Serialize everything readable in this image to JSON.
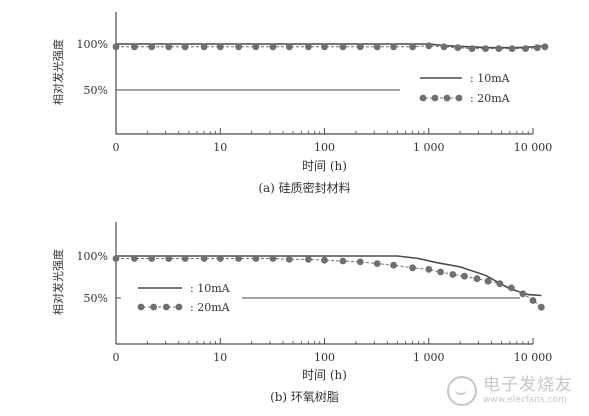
{
  "chart_data": [
    {
      "type": "line",
      "caption": "(a)  硅质密封材料",
      "ylabel": "相对发光强度",
      "xlabel": "时间 (h)",
      "xscale": "log",
      "x_ticks": [
        {
          "value": 0,
          "label": "0"
        },
        {
          "value": 10,
          "label": "10"
        },
        {
          "value": 100,
          "label": "100"
        },
        {
          "value": 1000,
          "label": "1 000"
        },
        {
          "value": 10000,
          "label": "10 000"
        }
      ],
      "y_ticks": [
        {
          "value": 100,
          "label": "100%"
        },
        {
          "value": 50,
          "label": "50%"
        }
      ],
      "ylim": [
        20,
        120
      ],
      "legend": [
        {
          "label": "10mA",
          "style": "solid"
        },
        {
          "label": "20mA",
          "style": "dotted-markers"
        }
      ],
      "legend_position": "right",
      "reference_line_50": true,
      "series": [
        {
          "style": "solid",
          "x": [
            1,
            3,
            10,
            30,
            100,
            300,
            700,
            1000,
            1500,
            2500,
            4000,
            7000,
            10000,
            12000
          ],
          "y": [
            100,
            100,
            100,
            100,
            100,
            100,
            100,
            100,
            98,
            97,
            96,
            96,
            97,
            98
          ]
        },
        {
          "style": "markers",
          "x": [
            1,
            1.5,
            2.2,
            3.2,
            4.6,
            7,
            10,
            15,
            22,
            32,
            46,
            70,
            100,
            150,
            220,
            320,
            460,
            700,
            1000,
            1400,
            1900,
            2600,
            3500,
            4700,
            6300,
            8500,
            11000,
            13000
          ],
          "y": [
            97,
            97,
            97,
            97,
            97,
            97,
            97,
            97,
            97,
            97,
            97,
            97,
            97,
            97,
            97,
            97,
            97,
            97,
            98,
            97,
            96,
            95,
            95,
            95,
            95,
            95,
            96,
            97
          ]
        }
      ]
    },
    {
      "type": "line",
      "caption": "(b)  环氧树脂",
      "ylabel": "相对发光强度",
      "xlabel": "时间 (h)",
      "xscale": "log",
      "x_ticks": [
        {
          "value": 0,
          "label": "0"
        },
        {
          "value": 10,
          "label": "10"
        },
        {
          "value": 100,
          "label": "100"
        },
        {
          "value": 1000,
          "label": "1 000"
        },
        {
          "value": 10000,
          "label": "10 000"
        }
      ],
      "y_ticks": [
        {
          "value": 100,
          "label": "100%"
        },
        {
          "value": 50,
          "label": "50%"
        }
      ],
      "ylim": [
        20,
        120
      ],
      "legend": [
        {
          "label": "10mA",
          "style": "solid"
        },
        {
          "label": "20mA",
          "style": "dotted-markers"
        }
      ],
      "legend_position": "left",
      "reference_line_50": true,
      "series": [
        {
          "style": "solid",
          "x": [
            1,
            10,
            100,
            300,
            500,
            800,
            1200,
            2000,
            3500,
            6000,
            9000,
            12000
          ],
          "y": [
            100,
            100,
            100,
            100,
            100,
            97,
            92,
            87,
            77,
            61,
            54,
            53
          ]
        },
        {
          "style": "markers",
          "x": [
            1,
            1.5,
            2.2,
            3.2,
            4.6,
            7,
            10,
            15,
            22,
            32,
            46,
            70,
            100,
            150,
            220,
            320,
            460,
            700,
            1000,
            1300,
            1700,
            2200,
            2900,
            3700,
            4800,
            6200,
            8000,
            10000,
            12000
          ],
          "y": [
            97,
            97,
            97,
            97,
            97,
            97,
            97,
            97,
            97,
            97,
            96,
            96,
            95,
            94,
            93,
            91,
            89,
            86,
            84,
            81,
            78,
            76,
            73,
            70,
            67,
            62,
            55,
            47,
            39
          ]
        }
      ]
    }
  ],
  "icons": {
    "watermark": "electronic-enthusiast-logo-icon"
  },
  "watermark": {
    "cn": "电子发烧友",
    "en": "www.elecfans.com"
  }
}
